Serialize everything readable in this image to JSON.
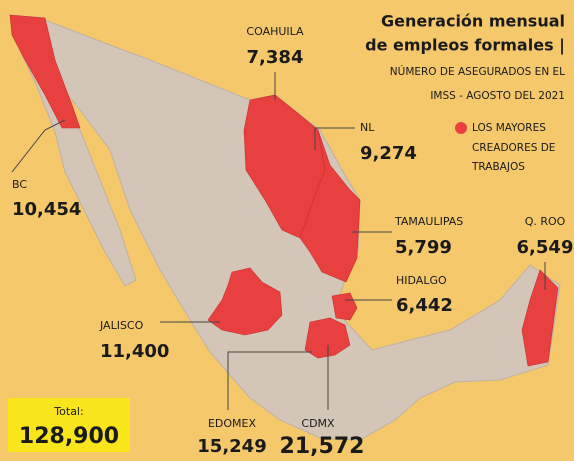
{
  "title_lines": [
    "Generación mensual",
    "de empleos formales |"
  ],
  "subtitle_lines": [
    "NÚMERO DE ASEGURADOS EN EL",
    "IMSS - AGOSTO DEL 2021"
  ],
  "legend_lines": [
    "LOS MAYORES",
    "CREADORES DE",
    "TRABAJOS"
  ],
  "states": [
    {
      "name": "COAHUILA",
      "value": "7,384"
    },
    {
      "name": "NL",
      "value": "9,274"
    },
    {
      "name": "BC",
      "value": "10,454"
    },
    {
      "name": "TAMAULIPAS",
      "value": "5,799"
    },
    {
      "name": "Q. ROO",
      "value": "6,549"
    },
    {
      "name": "HIDALGO",
      "value": "6,442"
    },
    {
      "name": "JALISCO",
      "value": "11,400"
    },
    {
      "name": "EDOMEX",
      "value": "15,249"
    },
    {
      "name": "CDMX",
      "value": "21,572"
    }
  ],
  "total": {
    "label": "Total:",
    "value": "128,900"
  }
}
